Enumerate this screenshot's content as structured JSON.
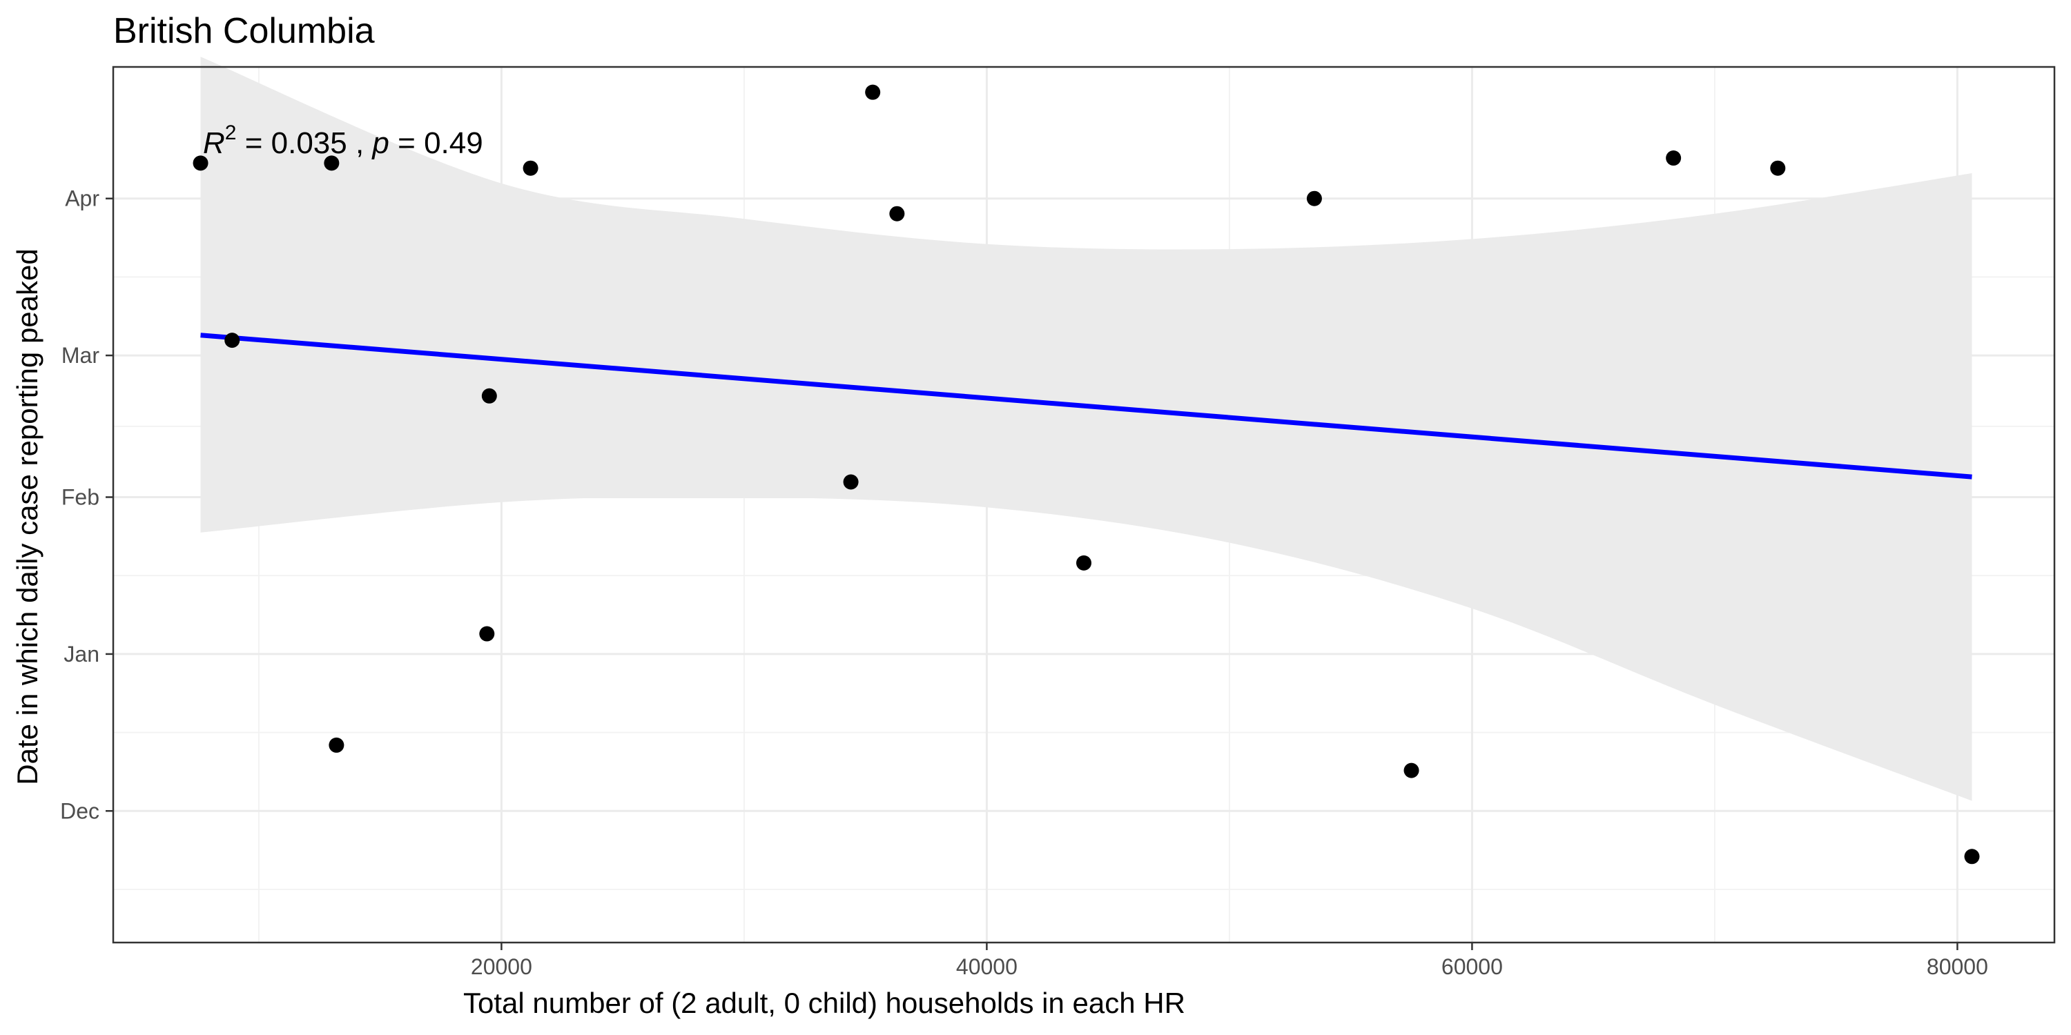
{
  "chart_data": {
    "type": "scatter",
    "title": "British Columbia",
    "xlabel": "Total number of (2 adult, 0 child) households in each HR",
    "ylabel": "Date in which daily case reporting peaked",
    "xlim": [
      4000,
      84000
    ],
    "ylim": [
      "2020-11-05",
      "2021-04-27"
    ],
    "x_ticks": [
      {
        "value": 20000,
        "label": "20000"
      },
      {
        "value": 40000,
        "label": "40000"
      },
      {
        "value": 60000,
        "label": "60000"
      },
      {
        "value": 80000,
        "label": "80000"
      }
    ],
    "y_ticks": [
      {
        "value": "2020-12-01",
        "label": "Dec"
      },
      {
        "value": "2021-01-01",
        "label": "Jan"
      },
      {
        "value": "2021-02-01",
        "label": "Feb"
      },
      {
        "value": "2021-03-01",
        "label": "Mar"
      },
      {
        "value": "2021-04-01",
        "label": "Apr"
      }
    ],
    "points": [
      {
        "x": 7600,
        "y": "2021-04-08"
      },
      {
        "x": 8900,
        "y": "2021-03-04"
      },
      {
        "x": 13000,
        "y": "2021-04-08"
      },
      {
        "x": 13200,
        "y": "2020-12-14"
      },
      {
        "x": 19400,
        "y": "2021-01-05"
      },
      {
        "x": 19500,
        "y": "2021-02-21"
      },
      {
        "x": 21200,
        "y": "2021-04-07"
      },
      {
        "x": 34400,
        "y": "2021-02-04"
      },
      {
        "x": 35300,
        "y": "2021-04-22"
      },
      {
        "x": 36300,
        "y": "2021-03-29"
      },
      {
        "x": 44000,
        "y": "2021-01-19"
      },
      {
        "x": 53500,
        "y": "2021-04-01"
      },
      {
        "x": 57500,
        "y": "2020-12-09"
      },
      {
        "x": 68300,
        "y": "2021-04-09"
      },
      {
        "x": 72600,
        "y": "2021-04-07"
      },
      {
        "x": 80600,
        "y": "2020-11-22"
      }
    ],
    "trend_line": {
      "color": "#0000ff",
      "start": {
        "x": 7600,
        "y": "2021-03-05"
      },
      "end": {
        "x": 80600,
        "y": "2021-02-05"
      }
    },
    "confidence_band": {
      "color": "#ebebeb",
      "upper": [
        {
          "x": 7600,
          "y": "2021-04-29"
        },
        {
          "x": 20000,
          "y": "2021-04-04"
        },
        {
          "x": 30000,
          "y": "2021-03-28"
        },
        {
          "x": 40000,
          "y": "2021-03-23"
        },
        {
          "x": 50000,
          "y": "2021-03-22"
        },
        {
          "x": 60000,
          "y": "2021-03-24"
        },
        {
          "x": 70000,
          "y": "2021-03-29"
        },
        {
          "x": 80600,
          "y": "2021-04-06"
        }
      ],
      "lower": [
        {
          "x": 7600,
          "y": "2021-01-25"
        },
        {
          "x": 20000,
          "y": "2021-01-31"
        },
        {
          "x": 30000,
          "y": "2021-02-01"
        },
        {
          "x": 40000,
          "y": "2021-01-30"
        },
        {
          "x": 50000,
          "y": "2021-01-23"
        },
        {
          "x": 60000,
          "y": "2021-01-10"
        },
        {
          "x": 70000,
          "y": "2020-12-22"
        },
        {
          "x": 80600,
          "y": "2020-12-03"
        }
      ]
    },
    "annotation": {
      "r2_value": "0.035",
      "p_value": "0.49"
    },
    "grid": true,
    "legend": "none"
  }
}
